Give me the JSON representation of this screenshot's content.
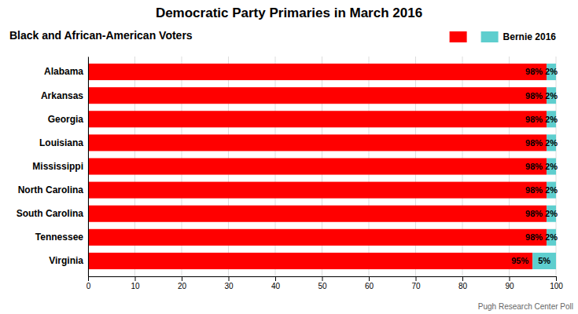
{
  "chart_data": {
    "type": "bar",
    "orientation": "horizontal",
    "stacked": true,
    "title": "Democratic Party Primaries in March 2016",
    "subtitle": "Black and African-American Voters",
    "footer": "Pugh Research Center Poll",
    "categories": [
      "Alabama",
      "Arkansas",
      "Georgia",
      "Louisiana",
      "Mississippi",
      "North Carolina",
      "South Carolina",
      "Tennessee",
      "Virginia"
    ],
    "series": [
      {
        "color": "#FF0000",
        "values": [
          98,
          98,
          98,
          98,
          98,
          98,
          98,
          98,
          95
        ],
        "value_labels": [
          "98%",
          "98%",
          "98%",
          "98%",
          "98%",
          "98%",
          "98%",
          "98%",
          "95%"
        ]
      },
      {
        "name": "Bernie 2016",
        "color": "#5ECECE",
        "values": [
          2,
          2,
          2,
          2,
          2,
          2,
          2,
          2,
          5
        ],
        "value_labels": [
          "2%",
          "2%",
          "2%",
          "2%",
          "2%",
          "2%",
          "2%",
          "2%",
          "5%"
        ]
      }
    ],
    "xlim": [
      0,
      100
    ],
    "xticks": [
      0,
      10,
      20,
      30,
      40,
      50,
      60,
      70,
      80,
      90,
      100
    ],
    "grid": true,
    "legend": "top",
    "data_labels": true
  }
}
